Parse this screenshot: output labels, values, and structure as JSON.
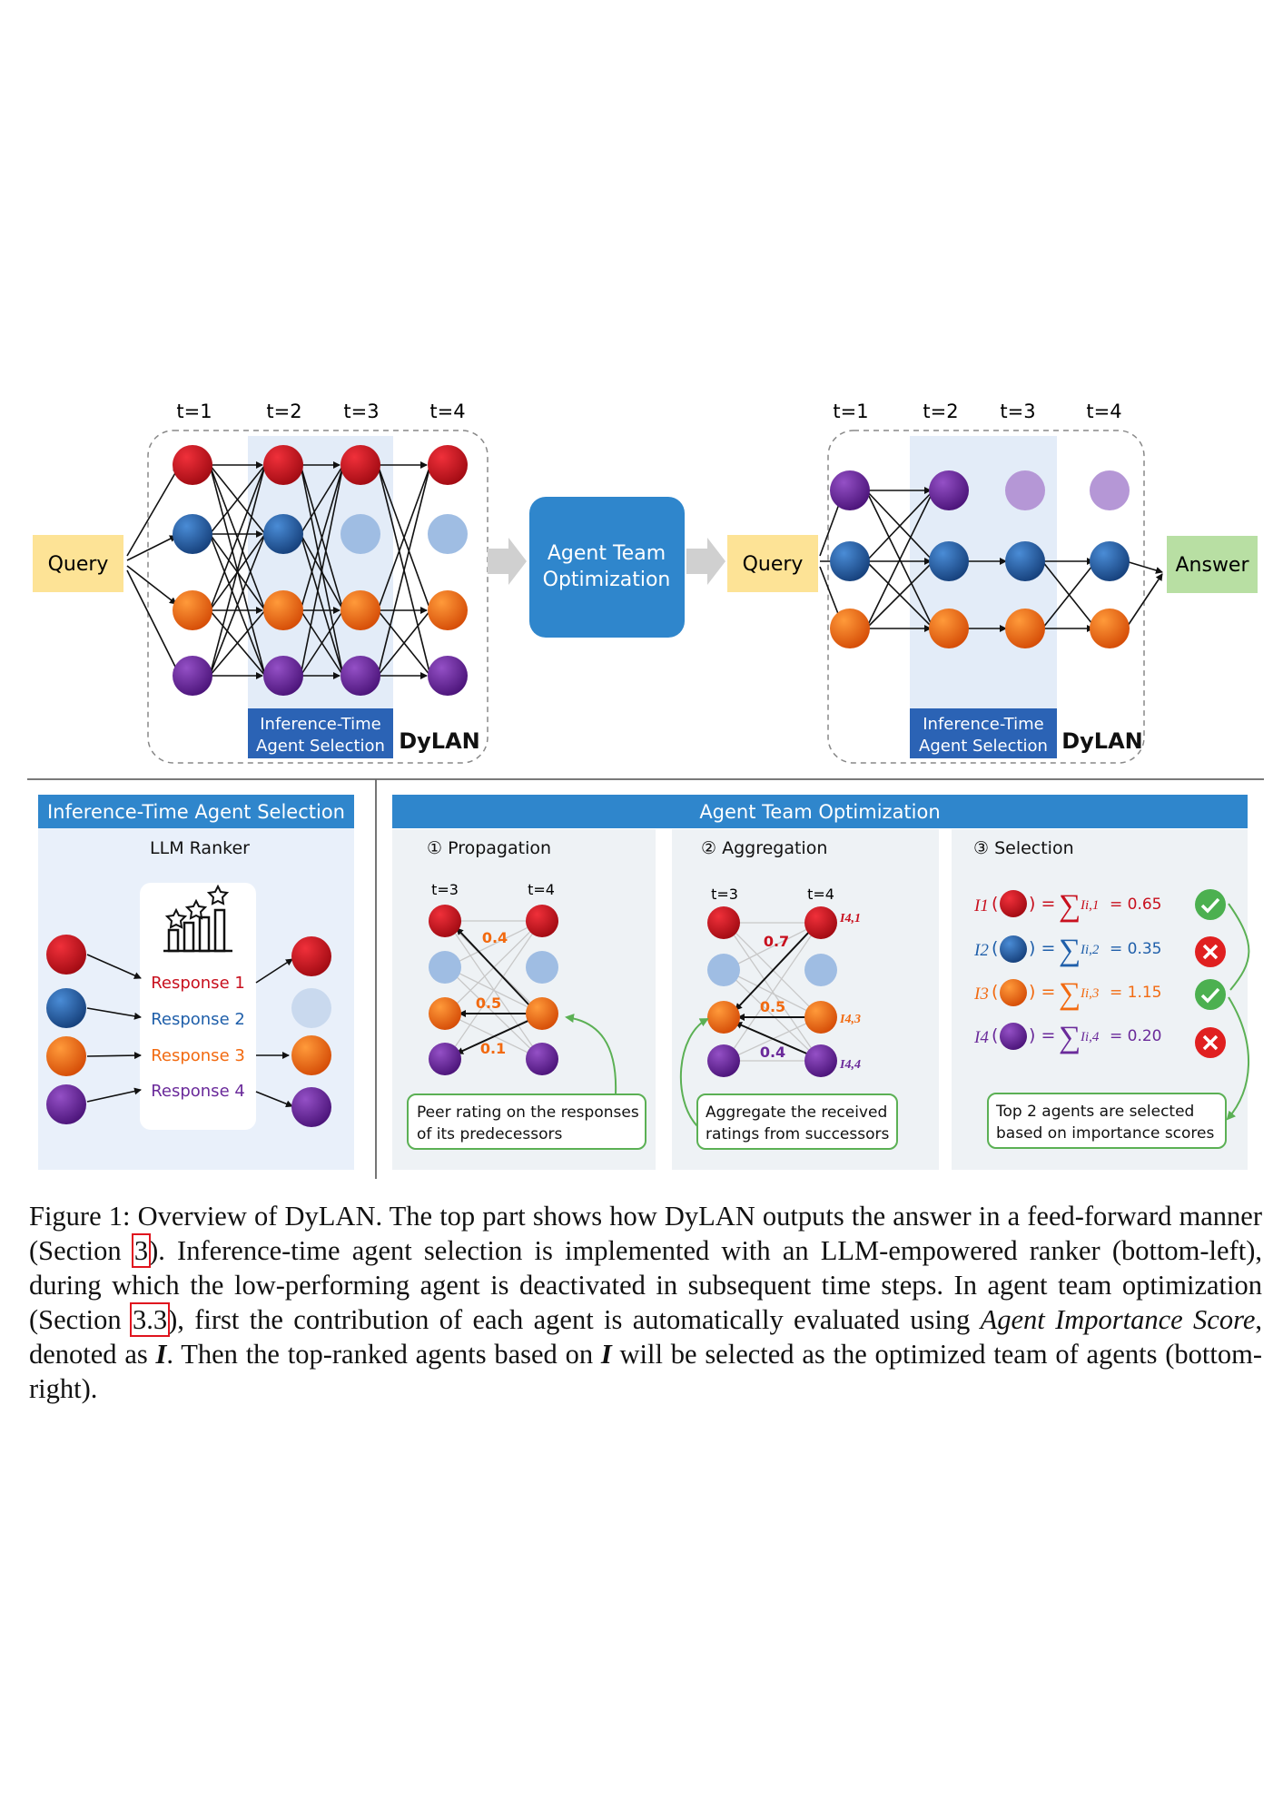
{
  "top_left_diagram": {
    "time_labels": [
      "t=1",
      "t=2",
      "t=3",
      "t=4"
    ],
    "query_label": "Query",
    "selection_label_line1": "Inference-Time",
    "selection_label_line2": "Agent Selection",
    "dylan_label": "DyLAN"
  },
  "middle_box": {
    "line1": "Agent Team",
    "line2": "Optimization"
  },
  "top_right_diagram": {
    "time_labels": [
      "t=1",
      "t=2",
      "t=3",
      "t=4"
    ],
    "query_label": "Query",
    "answer_label": "Answer",
    "selection_label_line1": "Inference-Time",
    "selection_label_line2": "Agent Selection",
    "dylan_label": "DyLAN"
  },
  "bottom_left_panel": {
    "header": "Inference-Time Agent Selection",
    "subtitle": "LLM Ranker",
    "responses": [
      "Response 1",
      "Response 2",
      "Response 3",
      "Response 4"
    ]
  },
  "bottom_right_panel": {
    "header": "Agent Team Optimization",
    "propagation": {
      "title": "① Propagation",
      "time_labels": [
        "t=3",
        "t=4"
      ],
      "weights": [
        "0.4",
        "0.5",
        "0.1"
      ],
      "note_line1": "Peer rating on the responses",
      "note_line2": "of its predecessors"
    },
    "aggregation": {
      "title": "② Aggregation",
      "time_labels": [
        "t=3",
        "t=4"
      ],
      "weights": [
        "0.7",
        "0.5",
        "0.4"
      ],
      "scores": [
        "I4,1",
        "I4,3",
        "I4,4"
      ],
      "note_line1": "Aggregate the received",
      "note_line2": "ratings from successors"
    },
    "selection": {
      "title": "③ Selection",
      "rows": [
        {
          "lhs": "I1",
          "rhs": "Ii,1",
          "value": "= 0.65",
          "selected": true
        },
        {
          "lhs": "I2",
          "rhs": "Ii,2",
          "value": "= 0.35",
          "selected": false
        },
        {
          "lhs": "I3",
          "rhs": "Ii,3",
          "value": "= 1.15",
          "selected": true
        },
        {
          "lhs": "I4",
          "rhs": "Ii,4",
          "value": "= 0.20",
          "selected": false
        }
      ],
      "note_line1": "Top 2 agents are selected",
      "note_line2": "based on importance scores"
    }
  },
  "caption": {
    "figure_label": "Figure 1:",
    "part1": " Overview of DyLAN. The top part shows how DyLAN outputs the answer in a feed-forward manner (Section ",
    "ref1": "3",
    "part2": "). Inference-time agent selection is implemented with an LLM-empowered ranker (bottom-left), during which the low-performing agent is deactivated in subsequent time steps. In agent team optimization (Section ",
    "ref2": "3.3",
    "part3": "), first the contribution of each agent is automatically evaluated using ",
    "italic_term": "Agent Importance Score",
    "part4": ", denoted as ",
    "symbol": "I",
    "part5": ". Then the top-ranked agents based on ",
    "symbol2": "I",
    "part6": " will be selected as the optimized team of agents (bottom-right)."
  },
  "colors": {
    "red": "#c8101e",
    "blue": "#1f5faa",
    "orange": "#f26a10",
    "purple": "#6a2a9a",
    "light_blue": "#9fbde3",
    "light_purple": "#b597d6",
    "header_blue": "#2f86cc",
    "panel_bg": "#e9f0fa",
    "query_yellow": "#fde396",
    "answer_green": "#b8dfa3"
  }
}
